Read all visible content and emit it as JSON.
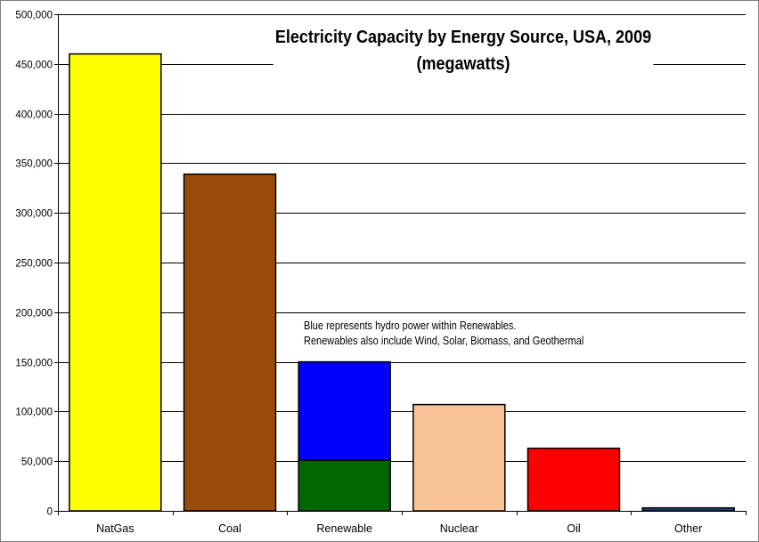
{
  "chart_data": {
    "type": "bar",
    "title": "Electricity Capacity by Energy Source,  USA, 2009",
    "subtitle": "(megawatts)",
    "xlabel": "",
    "ylabel": "",
    "ylim": [
      0,
      500000
    ],
    "yticks": [
      0,
      50000,
      100000,
      150000,
      200000,
      250000,
      300000,
      350000,
      400000,
      450000,
      500000
    ],
    "ytick_labels": [
      "0",
      "50,000",
      "100,000",
      "150,000",
      "200,000",
      "250,000",
      "300,000",
      "350,000",
      "400,000",
      "450,000",
      "500,000"
    ],
    "grid": true,
    "categories": [
      "NatGas",
      "Coal",
      "Renewable",
      "Nuclear",
      "Oil",
      "Other"
    ],
    "values": [
      460000,
      339000,
      150000,
      107000,
      63000,
      3000
    ],
    "bar_colors": [
      "#ffff00",
      "#994c0c",
      "#0000ff",
      "#f9c596",
      "#ff0000",
      "#1f3f7f"
    ],
    "stacked_segment": {
      "category": "Renewable",
      "value": 51000,
      "color": "#006600"
    },
    "annotation": [
      "Blue represents hydro power within Renewables.",
      "Renewables also include Wind, Solar, Biomass, and Geothermal"
    ]
  }
}
